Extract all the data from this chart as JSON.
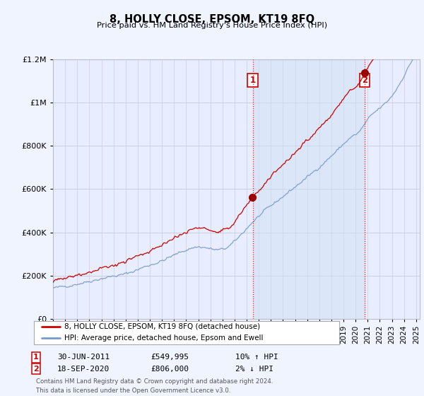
{
  "title": "8, HOLLY CLOSE, EPSOM, KT19 8FQ",
  "subtitle": "Price paid vs. HM Land Registry's House Price Index (HPI)",
  "background_color": "#f0f4ff",
  "plot_bg_color": "#e8eeff",
  "grid_color": "#ccccdd",
  "line1_color": "#cc0000",
  "line2_color": "#7799cc",
  "line2_fill_color": "#d0dff5",
  "ann1_x": 2011.5,
  "ann2_x": 2020.75,
  "sale1_date": "30-JUN-2011",
  "sale1_price": "£549,995",
  "sale1_hpi": "10% ↑ HPI",
  "sale2_date": "18-SEP-2020",
  "sale2_price": "£806,000",
  "sale2_hpi": "2% ↓ HPI",
  "legend1": "8, HOLLY CLOSE, EPSOM, KT19 8FQ (detached house)",
  "legend2": "HPI: Average price, detached house, Epsom and Ewell",
  "footer": "Contains HM Land Registry data © Crown copyright and database right 2024.\nThis data is licensed under the Open Government Licence v3.0.",
  "xmin": 1995.0,
  "xmax": 2025.3,
  "ymin": 0,
  "ymax": 1200000,
  "ytick_interval": 200000,
  "seed": 17
}
